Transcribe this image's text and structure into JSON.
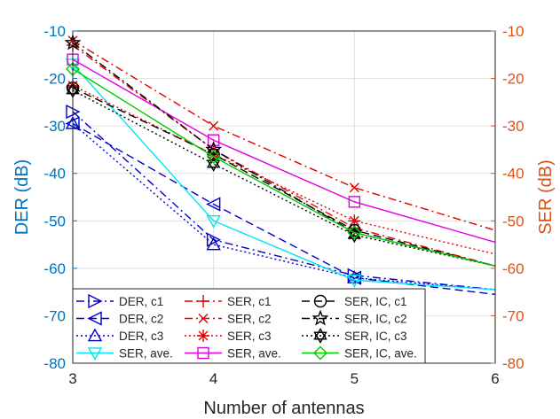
{
  "chart_data": {
    "type": "line",
    "xlabel": "Number of antennas",
    "ylabel_left": "DER (dB)",
    "ylabel_right": "SER (dB)",
    "x": [
      3,
      4,
      5,
      6
    ],
    "xlim": [
      3,
      6
    ],
    "ylim": [
      -80,
      -10
    ],
    "x_ticks": [
      "3",
      "4",
      "5",
      "6"
    ],
    "y_ticks": [
      "-10",
      "-20",
      "-30",
      "-40",
      "-50",
      "-60",
      "-70",
      "-80"
    ],
    "grid": true,
    "legend_position": "bottom-left",
    "colors": {
      "left_axis": "#0072bd",
      "right_axis": "#d95319",
      "der": "#0000cc",
      "ser": "#e00000",
      "ser_ave_cyan": "#00e5ee",
      "ser_ave_magenta": "#e000e0",
      "black": "#000000",
      "green": "#00cc00"
    },
    "series": [
      {
        "name": "DER, c1",
        "axis": "left",
        "color": "#0000cc",
        "dash": "dashdot",
        "marker": "tri-right",
        "values": [
          -27,
          -54,
          -61.5,
          -64.5
        ]
      },
      {
        "name": "DER, c2",
        "axis": "left",
        "color": "#0000cc",
        "dash": "dashed",
        "marker": "tri-left",
        "values": [
          -29.5,
          -46.5,
          -62,
          -65.5
        ]
      },
      {
        "name": "DER, c3",
        "axis": "left",
        "color": "#0000cc",
        "dash": "dotted",
        "marker": "tri-up",
        "values": [
          -29.5,
          -55,
          -62,
          -64.5
        ]
      },
      {
        "name": "SER, ave.",
        "axis": "left",
        "color": "#00e5ee",
        "dash": "solid",
        "marker": "tri-down",
        "values": [
          -17,
          -50,
          -62.5,
          -64.5
        ]
      },
      {
        "name": "SER, c1",
        "axis": "right",
        "color": "#e00000",
        "dash": "dashdot",
        "marker": "plus",
        "values": [
          -13,
          -35,
          -51.5,
          -59.5
        ]
      },
      {
        "name": "SER, c2",
        "axis": "right",
        "color": "#e00000",
        "dash": "dashdot",
        "marker": "x",
        "values": [
          -12,
          -30,
          -43,
          -52
        ]
      },
      {
        "name": "SER, c3",
        "axis": "right",
        "color": "#e00000",
        "dash": "dotted",
        "marker": "asterisk",
        "values": [
          -21.5,
          -36,
          -50,
          -57
        ]
      },
      {
        "name": "SER, ave.",
        "axis": "right",
        "color": "#e000e0",
        "dash": "solid",
        "marker": "square",
        "values": [
          -16,
          -33,
          -46,
          -54.5
        ]
      },
      {
        "name": "SER, IC, c1",
        "axis": "right",
        "color": "#000000",
        "dash": "dashed",
        "marker": "circle",
        "values": [
          -22,
          -36,
          -52,
          -59.5
        ]
      },
      {
        "name": "SER, IC, c2",
        "axis": "right",
        "color": "#000000",
        "dash": "dashdot",
        "marker": "star",
        "values": [
          -12.5,
          -35,
          -52.5,
          -59.5
        ]
      },
      {
        "name": "SER, IC, c3",
        "axis": "right",
        "color": "#000000",
        "dash": "dotted",
        "marker": "hexagram",
        "values": [
          -22.5,
          -38,
          -53,
          -59.5
        ]
      },
      {
        "name": "SER, IC, ave.",
        "axis": "right",
        "color": "#00cc00",
        "dash": "solid",
        "marker": "diamond",
        "values": [
          -18,
          -36.5,
          -52.5,
          -59.5
        ]
      }
    ]
  }
}
